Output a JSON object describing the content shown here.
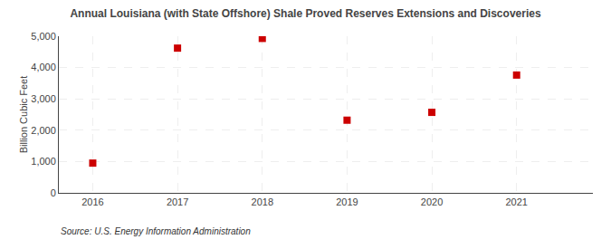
{
  "chart_data": {
    "type": "scatter",
    "title": "Annual Louisiana (with State Offshore) Shale Proved Reserves Extensions and Discoveries",
    "ylabel": "Billion Cubic Feet",
    "annotations": [
      "Source: U.S. Energy Information Administration"
    ],
    "x": [
      2016,
      2017,
      2018,
      2019,
      2020,
      2021
    ],
    "values": [
      950,
      4620,
      4930,
      2320,
      2570,
      3760
    ],
    "color": "#cc0000",
    "marker": "square",
    "xlim": [
      2015.6,
      2021.9
    ],
    "xticks": [
      2016,
      2017,
      2018,
      2019,
      2020,
      2021
    ],
    "ylim": [
      0,
      5000
    ],
    "yticks": [
      0,
      {
        "value": 1000,
        "label": "1,000"
      },
      {
        "value": 2000,
        "label": "2,000"
      },
      {
        "value": 3000,
        "label": "3,000"
      },
      {
        "value": 4000,
        "label": "4,000"
      },
      {
        "value": 5000,
        "label": "5,000"
      }
    ],
    "grid": true
  }
}
